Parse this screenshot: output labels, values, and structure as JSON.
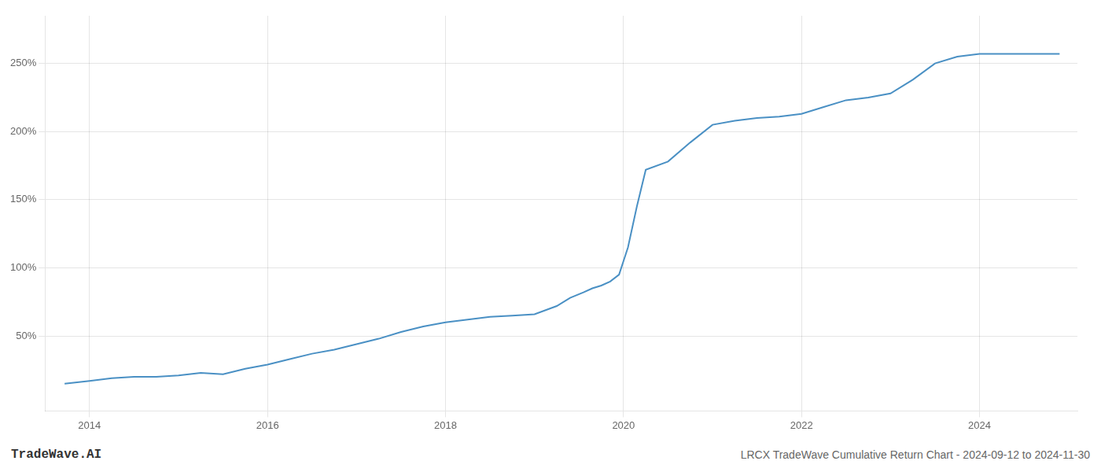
{
  "chart_data": {
    "type": "line",
    "title": "LRCX TradeWave Cumulative Return Chart - 2024-09-12 to 2024-11-30",
    "annotations": [
      "TradeWave.AI"
    ],
    "x": [
      2013.72,
      2014.0,
      2014.25,
      2014.5,
      2014.75,
      2015.0,
      2015.25,
      2015.5,
      2015.75,
      2016.0,
      2016.25,
      2016.5,
      2016.75,
      2017.0,
      2017.25,
      2017.5,
      2017.75,
      2018.0,
      2018.25,
      2018.5,
      2018.75,
      2019.0,
      2019.25,
      2019.4,
      2019.55,
      2019.65,
      2019.75,
      2019.85,
      2019.95,
      2020.05,
      2020.15,
      2020.25,
      2020.5,
      2020.75,
      2021.0,
      2021.25,
      2021.5,
      2021.75,
      2022.0,
      2022.25,
      2022.5,
      2022.75,
      2023.0,
      2023.25,
      2023.5,
      2023.75,
      2024.0,
      2024.25,
      2024.5,
      2024.75,
      2024.9
    ],
    "values": [
      15,
      17,
      19,
      20,
      20,
      21,
      23,
      22,
      26,
      29,
      33,
      37,
      40,
      44,
      48,
      53,
      57,
      60,
      62,
      64,
      65,
      66,
      72,
      78,
      82,
      85,
      87,
      90,
      95,
      115,
      145,
      172,
      178,
      192,
      205,
      208,
      210,
      211,
      213,
      218,
      223,
      225,
      228,
      238,
      250,
      255,
      257,
      257,
      257,
      257,
      257
    ],
    "color": "#4a90c4",
    "xlim": [
      2013.5,
      2025.1
    ],
    "ylim": [
      -5,
      285
    ],
    "xticks": [
      2014,
      2016,
      2018,
      2020,
      2022,
      2024
    ],
    "yticks": [
      {
        "value": 50,
        "label": "50%"
      },
      {
        "value": 100,
        "label": "100%"
      },
      {
        "value": 150,
        "label": "150%"
      },
      {
        "value": 200,
        "label": "200%"
      },
      {
        "value": 250,
        "label": "250%"
      }
    ],
    "grid": true
  }
}
